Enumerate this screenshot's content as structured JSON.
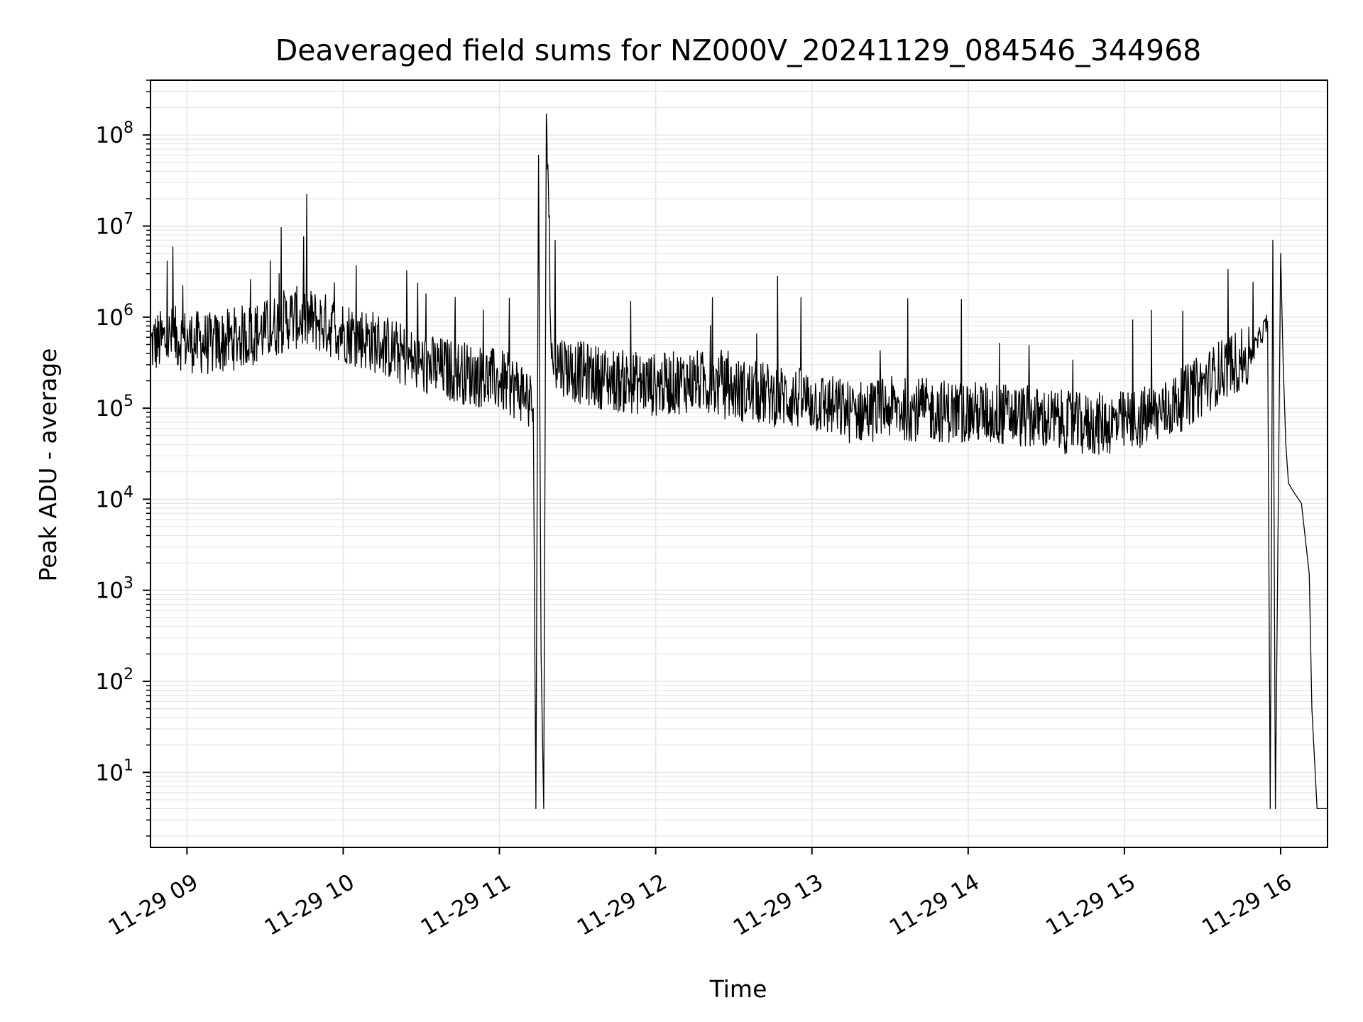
{
  "chart_data": {
    "type": "line",
    "title": "Deaveraged field sums for NZ000V_20241129_084546_344968",
    "xlabel": "Time",
    "ylabel": "Peak ADU - average",
    "xlim": [
      "2024-11-29 08:46",
      "2024-11-29 16:18"
    ],
    "ylim": [
      1.5,
      400000000
    ],
    "yscale": "log",
    "grid": true,
    "legend": "none",
    "line_color": "#000000",
    "grid_color": "#e6e6e6",
    "x_ticks": [
      "11-29 09",
      "11-29 10",
      "11-29 11",
      "11-29 12",
      "11-29 13",
      "11-29 14",
      "11-29 15",
      "11-29 16"
    ],
    "y_ticks": [
      {
        "base": "10",
        "exp": "1",
        "value": 10
      },
      {
        "base": "10",
        "exp": "2",
        "value": 100
      },
      {
        "base": "10",
        "exp": "3",
        "value": 1000
      },
      {
        "base": "10",
        "exp": "4",
        "value": 10000
      },
      {
        "base": "10",
        "exp": "5",
        "value": 100000
      },
      {
        "base": "10",
        "exp": "6",
        "value": 1000000
      },
      {
        "base": "10",
        "exp": "7",
        "value": 10000000
      },
      {
        "base": "10",
        "exp": "8",
        "value": 100000000
      }
    ],
    "series": [
      {
        "x": [
          "2024-11-29 08:46",
          "2024-11-29 08:55",
          "2024-11-29 09:00",
          "2024-11-29 09:10",
          "2024-11-29 09:20",
          "2024-11-29 09:30",
          "2024-11-29 09:40",
          "2024-11-29 09:50",
          "2024-11-29 10:00",
          "2024-11-29 10:15",
          "2024-11-29 10:30",
          "2024-11-29 10:45",
          "2024-11-29 11:00",
          "2024-11-29 11:10",
          "2024-11-29 11:13",
          "2024-11-29 11:14",
          "2024-11-29 11:15",
          "2024-11-29 11:16",
          "2024-11-29 11:17",
          "2024-11-29 11:18",
          "2024-11-29 11:20",
          "2024-11-29 11:30",
          "2024-11-29 11:45",
          "2024-11-29 12:00",
          "2024-11-29 12:15",
          "2024-11-29 12:30",
          "2024-11-29 12:45",
          "2024-11-29 13:00",
          "2024-11-29 13:15",
          "2024-11-29 13:30",
          "2024-11-29 13:45",
          "2024-11-29 14:00",
          "2024-11-29 14:15",
          "2024-11-29 14:30",
          "2024-11-29 14:45",
          "2024-11-29 15:00",
          "2024-11-29 15:15",
          "2024-11-29 15:30",
          "2024-11-29 15:40",
          "2024-11-29 15:48",
          "2024-11-29 15:55",
          "2024-11-29 15:56",
          "2024-11-29 15:57",
          "2024-11-29 15:58",
          "2024-11-29 16:00",
          "2024-11-29 16:01",
          "2024-11-29 16:02",
          "2024-11-29 16:03",
          "2024-11-29 16:05",
          "2024-11-29 16:08",
          "2024-11-29 16:11",
          "2024-11-29 16:12",
          "2024-11-29 16:14",
          "2024-11-29 16:18"
        ],
        "values": [
          500000,
          600000,
          550000,
          500000,
          600000,
          700000,
          1000000,
          900000,
          700000,
          500000,
          300000,
          250000,
          200000,
          150000,
          100000,
          4,
          60000000,
          200,
          4,
          170000000,
          350000,
          250000,
          200000,
          180000,
          200000,
          160000,
          140000,
          120000,
          90000,
          100000,
          95000,
          90000,
          85000,
          75000,
          65000,
          70000,
          90000,
          180000,
          300000,
          350000,
          900000,
          4,
          7000000,
          4,
          5000000,
          300000,
          40000,
          15000,
          12000,
          9000,
          1500,
          50,
          4,
          4
        ]
      }
    ]
  }
}
